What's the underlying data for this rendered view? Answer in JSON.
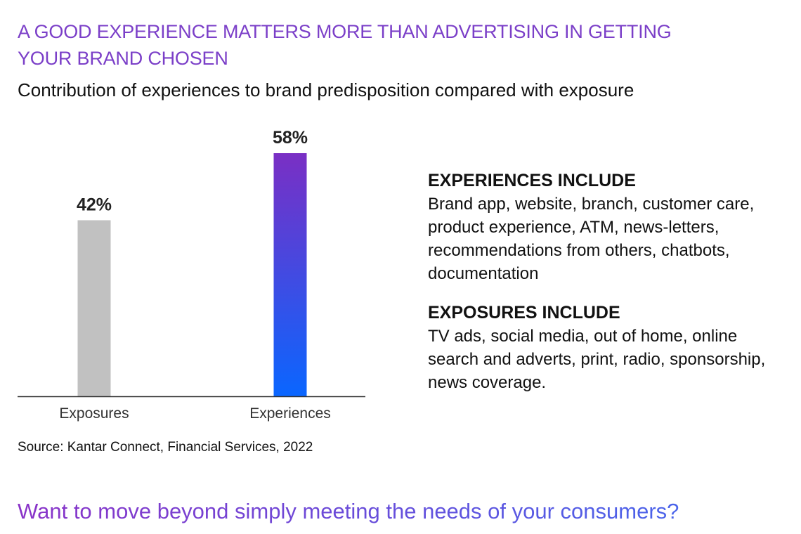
{
  "header": {
    "title": "A GOOD EXPERIENCE MATTERS MORE THAN ADVERTISING IN GETTING YOUR BRAND CHOSEN",
    "subtitle": "Contribution of experiences to brand predisposition compared with exposure"
  },
  "chart_data": {
    "type": "bar",
    "categories": [
      "Exposures",
      "Experiences"
    ],
    "values": [
      42,
      58
    ],
    "value_labels": [
      "42%",
      "58%"
    ],
    "ylim": [
      0,
      58
    ],
    "grid": false,
    "legend": "none",
    "colors": {
      "exposures": "#c1c1c1",
      "experiences_top": "#7a2fc4",
      "experiences_bottom": "#0a66ff",
      "axis": "#333333"
    }
  },
  "source": "Source: Kantar Connect, Financial Services, 2022",
  "panel": {
    "experiences": {
      "heading": "EXPERIENCES INCLUDE",
      "body": "Brand app, website, branch, customer care, product experience, ATM, news-letters, recommendations from others, chatbots, documentation"
    },
    "exposures": {
      "heading": "EXPOSURES INCLUDE",
      "body": "TV ads, social media, out of home, online search and adverts, print, radio, sponsorship, news coverage."
    }
  },
  "cta": "Want to move beyond simply meeting the needs of your consumers?",
  "theme": {
    "title_color": "#7b3fc8",
    "cta_gradient_start": "#8a33c8",
    "cta_gradient_end": "#3f6cf0"
  }
}
